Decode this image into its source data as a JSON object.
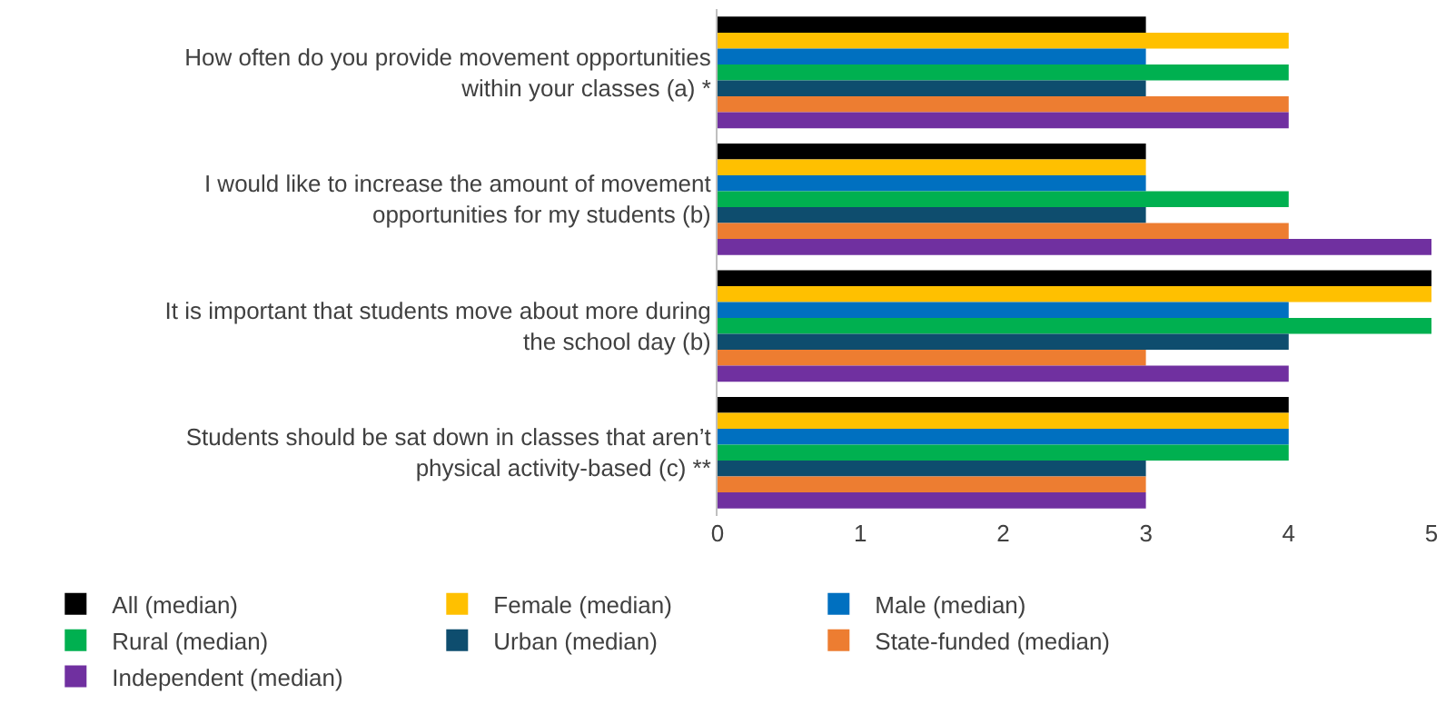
{
  "chart_data": {
    "type": "bar",
    "orientation": "horizontal",
    "categories": [
      "How often do you provide movement opportunities within your classes (a) *",
      "I would like to increase the amount of movement opportunities for my students (b)",
      "It is important that students move about more during the school day (b)",
      "Students should be sat down in classes that aren’t physical activity-based (c) **"
    ],
    "series": [
      {
        "name": "All (median)",
        "color": "#000000",
        "values": [
          3,
          3,
          5,
          4
        ]
      },
      {
        "name": "Female (median)",
        "color": "#ffc000",
        "values": [
          4,
          3,
          5,
          4
        ]
      },
      {
        "name": "Male (median)",
        "color": "#0070c0",
        "values": [
          3,
          3,
          4,
          4
        ]
      },
      {
        "name": "Rural (median)",
        "color": "#00b050",
        "values": [
          4,
          4,
          5,
          4
        ]
      },
      {
        "name": "Urban (median)",
        "color": "#0e4d6e",
        "values": [
          3,
          3,
          4,
          3
        ]
      },
      {
        "name": "State-funded (median)",
        "color": "#ed7d31",
        "values": [
          4,
          4,
          3,
          3
        ]
      },
      {
        "name": "Independent (median)",
        "color": "#7030a0",
        "values": [
          4,
          5,
          4,
          3
        ]
      }
    ],
    "xlim": [
      0,
      5
    ],
    "xticks": [
      0,
      1,
      2,
      3,
      4,
      5
    ],
    "grid": false,
    "legend": "bottom"
  }
}
